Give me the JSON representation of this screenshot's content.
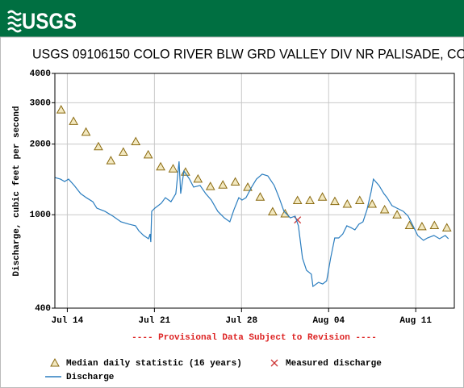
{
  "header": {
    "logo": "USGS"
  },
  "chart_data": {
    "type": "line",
    "title": "USGS 09106150 COLO RIVER BLW GRD VALLEY DIV NR PALISADE, CO",
    "ylabel": "Discharge, cubic feet per second",
    "annotation": "---- Provisional Data Subject to Revision ----",
    "xlim": [
      0,
      32.1
    ],
    "xticks": [
      {
        "value": 1,
        "label": "Jul 14"
      },
      {
        "value": 8,
        "label": "Jul 21"
      },
      {
        "value": 15,
        "label": "Jul 28"
      },
      {
        "value": 22,
        "label": "Aug 04"
      },
      {
        "value": 29,
        "label": "Aug 11"
      }
    ],
    "ylim": [
      400,
      4000
    ],
    "yticks": [
      400,
      1000,
      2000,
      3000,
      4000
    ],
    "log_y": true,
    "grid": true,
    "series": [
      {
        "name": "Median daily statistic (16 years)",
        "marker": "triangle",
        "color": "#8a6a10",
        "x": [
          0.5,
          1.5,
          2.5,
          3.5,
          4.5,
          5.5,
          6.5,
          7.5,
          8.5,
          9.5,
          10.5,
          11.5,
          12.5,
          13.5,
          14.5,
          15.5,
          16.5,
          17.5,
          18.5,
          19.5,
          20.5,
          21.5,
          22.5,
          23.5,
          24.5,
          25.5,
          26.5,
          27.5,
          28.5,
          29.5,
          30.5,
          31.5
        ],
        "values": [
          2800,
          2500,
          2250,
          1950,
          1700,
          1850,
          2050,
          1800,
          1600,
          1570,
          1520,
          1420,
          1320,
          1340,
          1380,
          1310,
          1190,
          1030,
          1010,
          1150,
          1150,
          1190,
          1140,
          1110,
          1150,
          1110,
          1050,
          1000,
          900,
          890,
          900,
          880
        ]
      },
      {
        "name": "Measured discharge",
        "marker": "x",
        "color": "#cc3333",
        "x": [
          19.5
        ],
        "values": [
          950
        ]
      },
      {
        "name": "Discharge",
        "marker": "line",
        "color": "#2a7dbf",
        "x": [
          0,
          0.45,
          0.78,
          1.1,
          1.56,
          2.07,
          2.53,
          3.05,
          3.37,
          4.02,
          4.67,
          5.31,
          5.96,
          6.48,
          6.74,
          7.13,
          7.52,
          7.65,
          7.71,
          7.78,
          8.04,
          8.55,
          8.88,
          9.33,
          9.72,
          9.98,
          10.11,
          10.37,
          10.82,
          11.15,
          11.67,
          12.12,
          12.57,
          13.09,
          13.61,
          14.06,
          14.39,
          14.78,
          15.04,
          15.36,
          15.81,
          16.2,
          16.66,
          17.11,
          17.63,
          18.02,
          18.41,
          18.92,
          19.31,
          19.57,
          19.9,
          20.22,
          20.61,
          20.74,
          21.19,
          21.52,
          21.84,
          22.16,
          22.49,
          22.81,
          23.14,
          23.46,
          23.78,
          24.11,
          24.43,
          24.76,
          25.08,
          25.41,
          25.6,
          26.05,
          26.44,
          26.7,
          27.09,
          27.48,
          28,
          28.39,
          28.78,
          29.16,
          29.62,
          29.94,
          30.46,
          30.91,
          31.37,
          31.63
        ],
        "values": [
          1441,
          1418,
          1385,
          1418,
          1332,
          1230,
          1182,
          1136,
          1067,
          1034,
          986,
          933,
          911,
          897,
          855,
          816,
          790,
          828,
          765,
          1034,
          1067,
          1119,
          1182,
          1136,
          1230,
          1688,
          1230,
          1536,
          1418,
          1311,
          1332,
          1230,
          1155,
          1034,
          970,
          933,
          1050,
          1182,
          1155,
          1182,
          1311,
          1418,
          1488,
          1464,
          1332,
          1182,
          1034,
          970,
          986,
          897,
          653,
          580,
          558,
          495,
          515,
          507,
          523,
          653,
          796,
          796,
          828,
          897,
          882,
          862,
          911,
          933,
          1050,
          1250,
          1418,
          1332,
          1230,
          1182,
          1093,
          1067,
          1034,
          986,
          897,
          816,
          778,
          796,
          816,
          790,
          816,
          790
        ]
      }
    ]
  }
}
